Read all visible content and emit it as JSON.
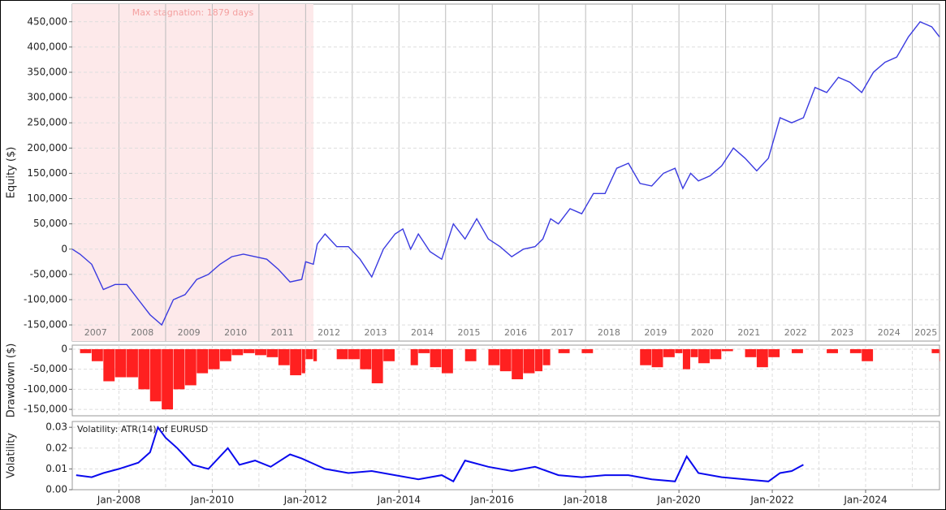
{
  "chart_data": [
    {
      "type": "line",
      "ylabel": "Equity ($)",
      "annotation": {
        "label": "Max stagnation: 1879 days",
        "start": "2007-01",
        "end": "2012-03"
      },
      "year_labels": [
        2007,
        2008,
        2009,
        2010,
        2011,
        2012,
        2013,
        2014,
        2015,
        2016,
        2017,
        2018,
        2019,
        2020,
        2021,
        2022,
        2023,
        2024,
        2025
      ],
      "xlim": [
        "2007-01",
        "2025-08"
      ],
      "ylim": [
        -182000,
        485000
      ],
      "yticks": [
        {
          "value": -150000,
          "label": "-150,000"
        },
        {
          "value": -100000,
          "label": "-100,000"
        },
        {
          "value": -50000,
          "label": "-50,000"
        },
        0,
        {
          "value": 50000,
          "label": "50,000"
        },
        {
          "value": 100000,
          "label": "100,000"
        },
        {
          "value": 150000,
          "label": "150,000"
        },
        {
          "value": 200000,
          "label": "200,000"
        },
        {
          "value": 250000,
          "label": "250,000"
        },
        {
          "value": 300000,
          "label": "300,000"
        },
        {
          "value": 350000,
          "label": "350,000"
        },
        {
          "value": 400000,
          "label": "400,000"
        },
        {
          "value": 450000,
          "label": "450,000"
        }
      ],
      "x": [
        "2007-01",
        "2007-03",
        "2007-06",
        "2007-09",
        "2007-12",
        "2008-03",
        "2008-06",
        "2008-09",
        "2008-12",
        "2009-03",
        "2009-06",
        "2009-09",
        "2009-12",
        "2010-03",
        "2010-06",
        "2010-09",
        "2010-12",
        "2011-03",
        "2011-06",
        "2011-09",
        "2011-12",
        "2012-01",
        "2012-03",
        "2012-04",
        "2012-06",
        "2012-09",
        "2012-12",
        "2013-03",
        "2013-06",
        "2013-09",
        "2013-12",
        "2014-02",
        "2014-04",
        "2014-06",
        "2014-09",
        "2014-12",
        "2015-03",
        "2015-06",
        "2015-09",
        "2015-12",
        "2016-03",
        "2016-06",
        "2016-09",
        "2016-12",
        "2017-02",
        "2017-04",
        "2017-06",
        "2017-09",
        "2017-12",
        "2018-03",
        "2018-06",
        "2018-09",
        "2018-12",
        "2019-03",
        "2019-06",
        "2019-09",
        "2019-12",
        "2020-02",
        "2020-04",
        "2020-06",
        "2020-09",
        "2020-12",
        "2021-03",
        "2021-06",
        "2021-09",
        "2021-12",
        "2022-03",
        "2022-06",
        "2022-09",
        "2022-12",
        "2023-03",
        "2023-06",
        "2023-09",
        "2023-12",
        "2024-03",
        "2024-06",
        "2024-09",
        "2024-12",
        "2025-03",
        "2025-06",
        "2025-08"
      ],
      "series": [
        {
          "color": "#3a3ae0",
          "values": [
            0,
            -10000,
            -30000,
            -80000,
            -70000,
            -70000,
            -100000,
            -130000,
            -150000,
            -100000,
            -90000,
            -60000,
            -50000,
            -30000,
            -15000,
            -10000,
            -15000,
            -20000,
            -40000,
            -65000,
            -60000,
            -25000,
            -30000,
            10000,
            30000,
            5000,
            5000,
            -20000,
            -55000,
            0,
            30000,
            40000,
            0,
            30000,
            -5000,
            -20000,
            50000,
            20000,
            60000,
            20000,
            5000,
            -15000,
            0,
            5000,
            20000,
            60000,
            50000,
            80000,
            70000,
            110000,
            110000,
            160000,
            170000,
            130000,
            125000,
            150000,
            160000,
            120000,
            150000,
            135000,
            145000,
            165000,
            200000,
            180000,
            155000,
            180000,
            260000,
            250000,
            260000,
            320000,
            310000,
            340000,
            330000,
            310000,
            350000,
            370000,
            380000,
            420000,
            450000,
            440000,
            420000
          ]
        }
      ]
    },
    {
      "type": "bar",
      "ylabel": "Drawdown ($)",
      "xlim": [
        "2007-01",
        "2025-08"
      ],
      "ylim": [
        -166000,
        10000
      ],
      "yticks": [
        {
          "value": -150000,
          "label": "-150,000"
        },
        {
          "value": -100000,
          "label": "-100,000"
        },
        {
          "value": -50000,
          "label": "-50,000"
        },
        0
      ],
      "x": [
        "2007-01",
        "2007-03",
        "2007-06",
        "2007-09",
        "2007-12",
        "2008-03",
        "2008-06",
        "2008-09",
        "2008-12",
        "2009-03",
        "2009-06",
        "2009-09",
        "2009-12",
        "2010-03",
        "2010-06",
        "2010-09",
        "2010-12",
        "2011-03",
        "2011-06",
        "2011-09",
        "2011-12",
        "2012-01",
        "2012-03",
        "2012-04",
        "2012-06",
        "2012-09",
        "2012-12",
        "2013-03",
        "2013-06",
        "2013-09",
        "2013-12",
        "2014-02",
        "2014-04",
        "2014-06",
        "2014-09",
        "2014-12",
        "2015-03",
        "2015-06",
        "2015-09",
        "2015-12",
        "2016-03",
        "2016-06",
        "2016-09",
        "2016-12",
        "2017-02",
        "2017-04",
        "2017-06",
        "2017-09",
        "2017-12",
        "2018-03",
        "2018-06",
        "2018-09",
        "2018-12",
        "2019-03",
        "2019-06",
        "2019-09",
        "2019-12",
        "2020-02",
        "2020-04",
        "2020-06",
        "2020-09",
        "2020-12",
        "2021-03",
        "2021-06",
        "2021-09",
        "2021-12",
        "2022-03",
        "2022-06",
        "2022-09",
        "2022-12",
        "2023-03",
        "2023-06",
        "2023-09",
        "2023-12",
        "2024-03",
        "2024-06",
        "2024-09",
        "2024-12",
        "2025-03",
        "2025-06",
        "2025-08"
      ],
      "color": "#ff2020",
      "values": [
        0,
        -10000,
        -30000,
        -80000,
        -70000,
        -70000,
        -100000,
        -130000,
        -150000,
        -100000,
        -90000,
        -60000,
        -50000,
        -30000,
        -15000,
        -10000,
        -15000,
        -20000,
        -40000,
        -65000,
        -60000,
        -25000,
        -30000,
        0,
        0,
        -25000,
        -25000,
        -50000,
        -85000,
        -30000,
        0,
        0,
        -40000,
        -10000,
        -45000,
        -60000,
        0,
        -30000,
        0,
        -40000,
        -55000,
        -75000,
        -60000,
        -55000,
        -40000,
        0,
        -10000,
        0,
        -10000,
        0,
        0,
        0,
        0,
        -40000,
        -45000,
        -20000,
        -10000,
        -50000,
        -20000,
        -35000,
        -25000,
        -5000,
        0,
        -20000,
        -45000,
        -20000,
        0,
        -10000,
        0,
        0,
        -10000,
        0,
        -10000,
        -30000,
        0,
        0,
        0,
        0,
        0,
        -10000,
        -30000
      ]
    },
    {
      "type": "line",
      "ylabel": "Volatility",
      "title": "Volatility: ATR(14) of EURUSD",
      "xlim": [
        "2007-01",
        "2025-08"
      ],
      "ylim": [
        0,
        0.0328
      ],
      "yticks": [
        {
          "value": 0,
          "label": "0.00"
        },
        {
          "value": 0.01,
          "label": "0.01"
        },
        {
          "value": 0.02,
          "label": "0.02"
        },
        {
          "value": 0.03,
          "label": "0.03"
        }
      ],
      "xticks": [
        {
          "value": "2008-01",
          "label": "Jan-2008"
        },
        {
          "value": "2010-01",
          "label": "Jan-2010"
        },
        {
          "value": "2012-01",
          "label": "Jan-2012"
        },
        {
          "value": "2014-01",
          "label": "Jan-2014"
        },
        {
          "value": "2016-01",
          "label": "Jan-2016"
        },
        {
          "value": "2018-01",
          "label": "Jan-2018"
        },
        {
          "value": "2020-01",
          "label": "Jan-2020"
        },
        {
          "value": "2022-01",
          "label": "Jan-2022"
        },
        {
          "value": "2024-01",
          "label": "Jan-2024"
        }
      ],
      "x": [
        "2007-02",
        "2007-06",
        "2007-09",
        "2008-01",
        "2008-06",
        "2008-09",
        "2008-11",
        "2009-01",
        "2009-04",
        "2009-08",
        "2009-12",
        "2010-05",
        "2010-08",
        "2010-12",
        "2011-04",
        "2011-09",
        "2011-12",
        "2012-06",
        "2012-12",
        "2013-06",
        "2013-12",
        "2014-06",
        "2014-12",
        "2015-03",
        "2015-06",
        "2015-12",
        "2016-06",
        "2016-12",
        "2017-06",
        "2017-12",
        "2018-06",
        "2018-12",
        "2019-06",
        "2019-12",
        "2020-03",
        "2020-06",
        "2020-12",
        "2021-06",
        "2021-12",
        "2022-03",
        "2022-06",
        "2022-09"
      ],
      "series": [
        {
          "color": "#0a0aee",
          "values": [
            0.007,
            0.006,
            0.008,
            0.01,
            0.013,
            0.018,
            0.03,
            0.025,
            0.02,
            0.012,
            0.01,
            0.02,
            0.012,
            0.014,
            0.011,
            0.017,
            0.015,
            0.01,
            0.008,
            0.009,
            0.007,
            0.005,
            0.007,
            0.004,
            0.014,
            0.011,
            0.009,
            0.011,
            0.007,
            0.006,
            0.007,
            0.007,
            0.005,
            0.004,
            0.016,
            0.008,
            0.006,
            0.005,
            0.004,
            0.008,
            0.009,
            0.012
          ]
        }
      ]
    }
  ]
}
